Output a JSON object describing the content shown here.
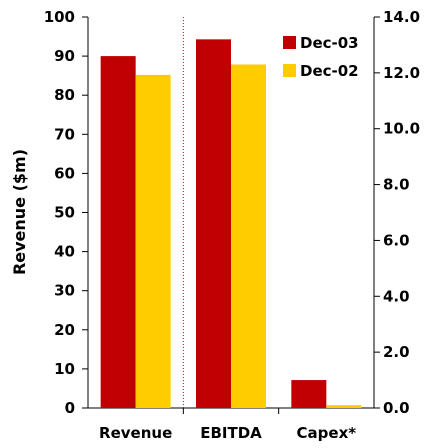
{
  "chart_data": {
    "type": "bar",
    "title": "",
    "xlabel": "",
    "ylabel": "Revenue ($m)",
    "categories": [
      "Revenue",
      "EBITDA",
      "Capex*"
    ],
    "left_axis": {
      "ylim": [
        0,
        100
      ],
      "ticks": [
        "0",
        "10",
        "20",
        "30",
        "40",
        "50",
        "60",
        "70",
        "80",
        "90",
        "100"
      ]
    },
    "right_axis": {
      "ylim": [
        0,
        14
      ],
      "ticks": [
        "0.0",
        "2.0",
        "4.0",
        "6.0",
        "8.0",
        "10.0",
        "12.0",
        "14.0"
      ]
    },
    "series": [
      {
        "name": "Dec-03",
        "color": "#C00000",
        "values": [
          90,
          13.2,
          1.0
        ],
        "axes": [
          "left",
          "right",
          "right"
        ]
      },
      {
        "name": "Dec-02",
        "color": "#FFCC00",
        "values": [
          85.2,
          12.3,
          0.1
        ],
        "axes": [
          "left",
          "right",
          "right"
        ]
      }
    ],
    "legend": "top-right",
    "grid": false,
    "divider_color": "#CC0000"
  }
}
